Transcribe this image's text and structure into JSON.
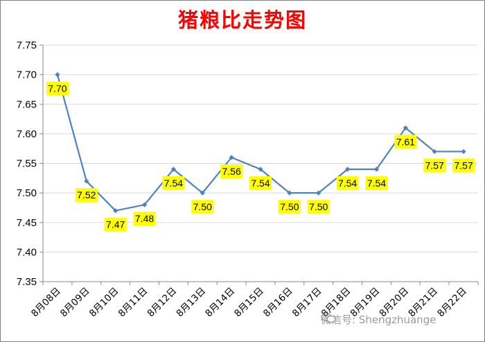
{
  "chart_data": {
    "type": "line",
    "title": "猪粮比走势图",
    "categories": [
      "8月08日",
      "8月09日",
      "8月10日",
      "8月11日",
      "8月12日",
      "8月13日",
      "8月14日",
      "8月15日",
      "8月16日",
      "8月17日",
      "8月18日",
      "8月19日",
      "8月20日",
      "8月21日",
      "8月22日"
    ],
    "series": [
      {
        "values": [
          7.7,
          7.52,
          7.47,
          7.48,
          7.54,
          7.5,
          7.56,
          7.54,
          7.5,
          7.5,
          7.54,
          7.54,
          7.61,
          7.57,
          7.57
        ]
      }
    ],
    "ylim": [
      7.35,
      7.75
    ],
    "yticks": [
      "7.75",
      "7.70",
      "7.65",
      "7.60",
      "7.55",
      "7.50",
      "7.45",
      "7.40",
      "7.35"
    ],
    "grid": true,
    "data_labels": true,
    "line_color": "#4f81bd",
    "label_bg_color": "#ffff00",
    "title_color": "#ff0000"
  },
  "watermark": {
    "text": "微信号: Shengzhuange"
  }
}
